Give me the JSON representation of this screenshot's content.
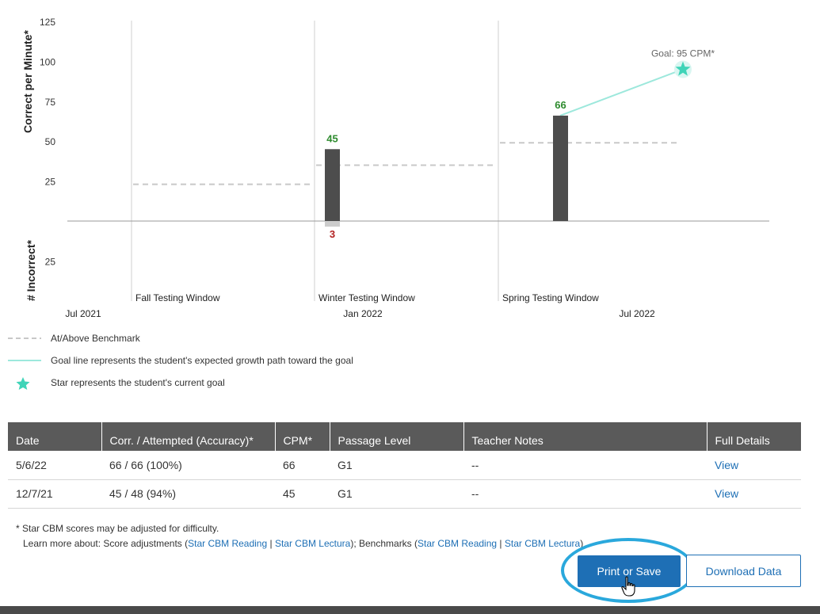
{
  "chart_data": {
    "type": "bar",
    "y_top_label": "Correct per Minute*",
    "y_bottom_label": "# Incorrect*",
    "y_ticks_top": [
      25,
      50,
      75,
      100,
      125
    ],
    "y_ticks_bottom": [
      25
    ],
    "ylim_top": [
      0,
      125
    ],
    "x_date_labels": [
      "Jul 2021",
      "Jan 2022",
      "Jul 2022"
    ],
    "windows": [
      "Fall Testing Window",
      "Winter Testing Window",
      "Spring Testing Window"
    ],
    "benchmarks": [
      {
        "window": "Fall Testing Window",
        "value": 23
      },
      {
        "window": "Winter Testing Window",
        "value": 35
      },
      {
        "window": "Spring Testing Window",
        "value": 49
      }
    ],
    "correct_bars": [
      {
        "window": "Winter Testing Window",
        "value": 45
      },
      {
        "window": "Spring Testing Window",
        "value": 66
      }
    ],
    "incorrect_bars": [
      {
        "window": "Winter Testing Window",
        "value": 3
      }
    ],
    "goal": {
      "value": 95,
      "label": "Goal: 95 CPM*"
    },
    "colors": {
      "bar": "#4d4d4d",
      "incorrect_bar": "#cccccc",
      "correct_label": "#2e8b2e",
      "incorrect_label": "#b22222",
      "goal_line": "#9de8dc",
      "star": "#3fd4b8",
      "benchmark": "#c8c8c8"
    }
  },
  "legend": {
    "benchmark": "At/Above Benchmark",
    "goal_line": "Goal line represents the student's expected growth path toward the goal",
    "star": "Star represents the student's current goal"
  },
  "table": {
    "headers": [
      "Date",
      "Corr. / Attempted (Accuracy)*",
      "CPM*",
      "Passage Level",
      "Teacher Notes",
      "Full Details"
    ],
    "rows": [
      [
        "5/6/22",
        "66 / 66 (100%)",
        "66",
        "G1",
        "--",
        "View"
      ],
      [
        "12/7/21",
        "45 / 48 (94%)",
        "45",
        "G1",
        "--",
        "View"
      ]
    ]
  },
  "footnote": {
    "line1": "* Star CBM scores may be adjusted for difficulty.",
    "learn_more": "Learn more about: Score adjustments (",
    "link1": "Star CBM Reading",
    "sep1": " | ",
    "link2": "Star CBM Lectura",
    "mid": "); Benchmarks (",
    "link3": "Star CBM Reading",
    "sep2": " | ",
    "link4": "Star CBM Lectura",
    "end": ")"
  },
  "buttons": {
    "print": "Print or Save",
    "download": "Download Data"
  }
}
